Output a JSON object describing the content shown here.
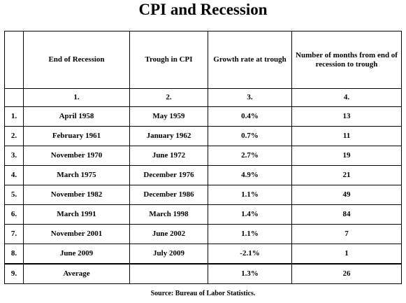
{
  "title": "CPI and Recession",
  "table": {
    "headers": [
      "End of Recession",
      "Trough in CPI",
      "Growth rate at trough",
      "Number of months from end of recession to trough"
    ],
    "column_numbers": [
      "1.",
      "2.",
      "3.",
      "4."
    ],
    "rows": [
      {
        "num": "1.",
        "end": "April 1958",
        "trough": "May 1959",
        "growth": "0.4%",
        "months": 13
      },
      {
        "num": "2.",
        "end": "February 1961",
        "trough": "January 1962",
        "growth": "0.7%",
        "months": 11
      },
      {
        "num": "3.",
        "end": "November 1970",
        "trough": "June 1972",
        "growth": "2.7%",
        "months": 19
      },
      {
        "num": "4.",
        "end": "March 1975",
        "trough": "December 1976",
        "growth": "4.9%",
        "months": 21
      },
      {
        "num": "5.",
        "end": "November 1982",
        "trough": "December 1986",
        "growth": "1.1%",
        "months": 49
      },
      {
        "num": "6.",
        "end": "March 1991",
        "trough": "March 1998",
        "growth": "1.4%",
        "months": 84
      },
      {
        "num": "7.",
        "end": "November 2001",
        "trough": "June 2002",
        "growth": "1.1%",
        "months": 7
      },
      {
        "num": "8.",
        "end": "June 2009",
        "trough": "July 2009",
        "growth": "-2.1%",
        "months": 1
      },
      {
        "num": "9.",
        "end": "Average",
        "growth": "1.3%",
        "months": 26
      }
    ]
  },
  "source": "Source: Bureau of Labor Statistics."
}
